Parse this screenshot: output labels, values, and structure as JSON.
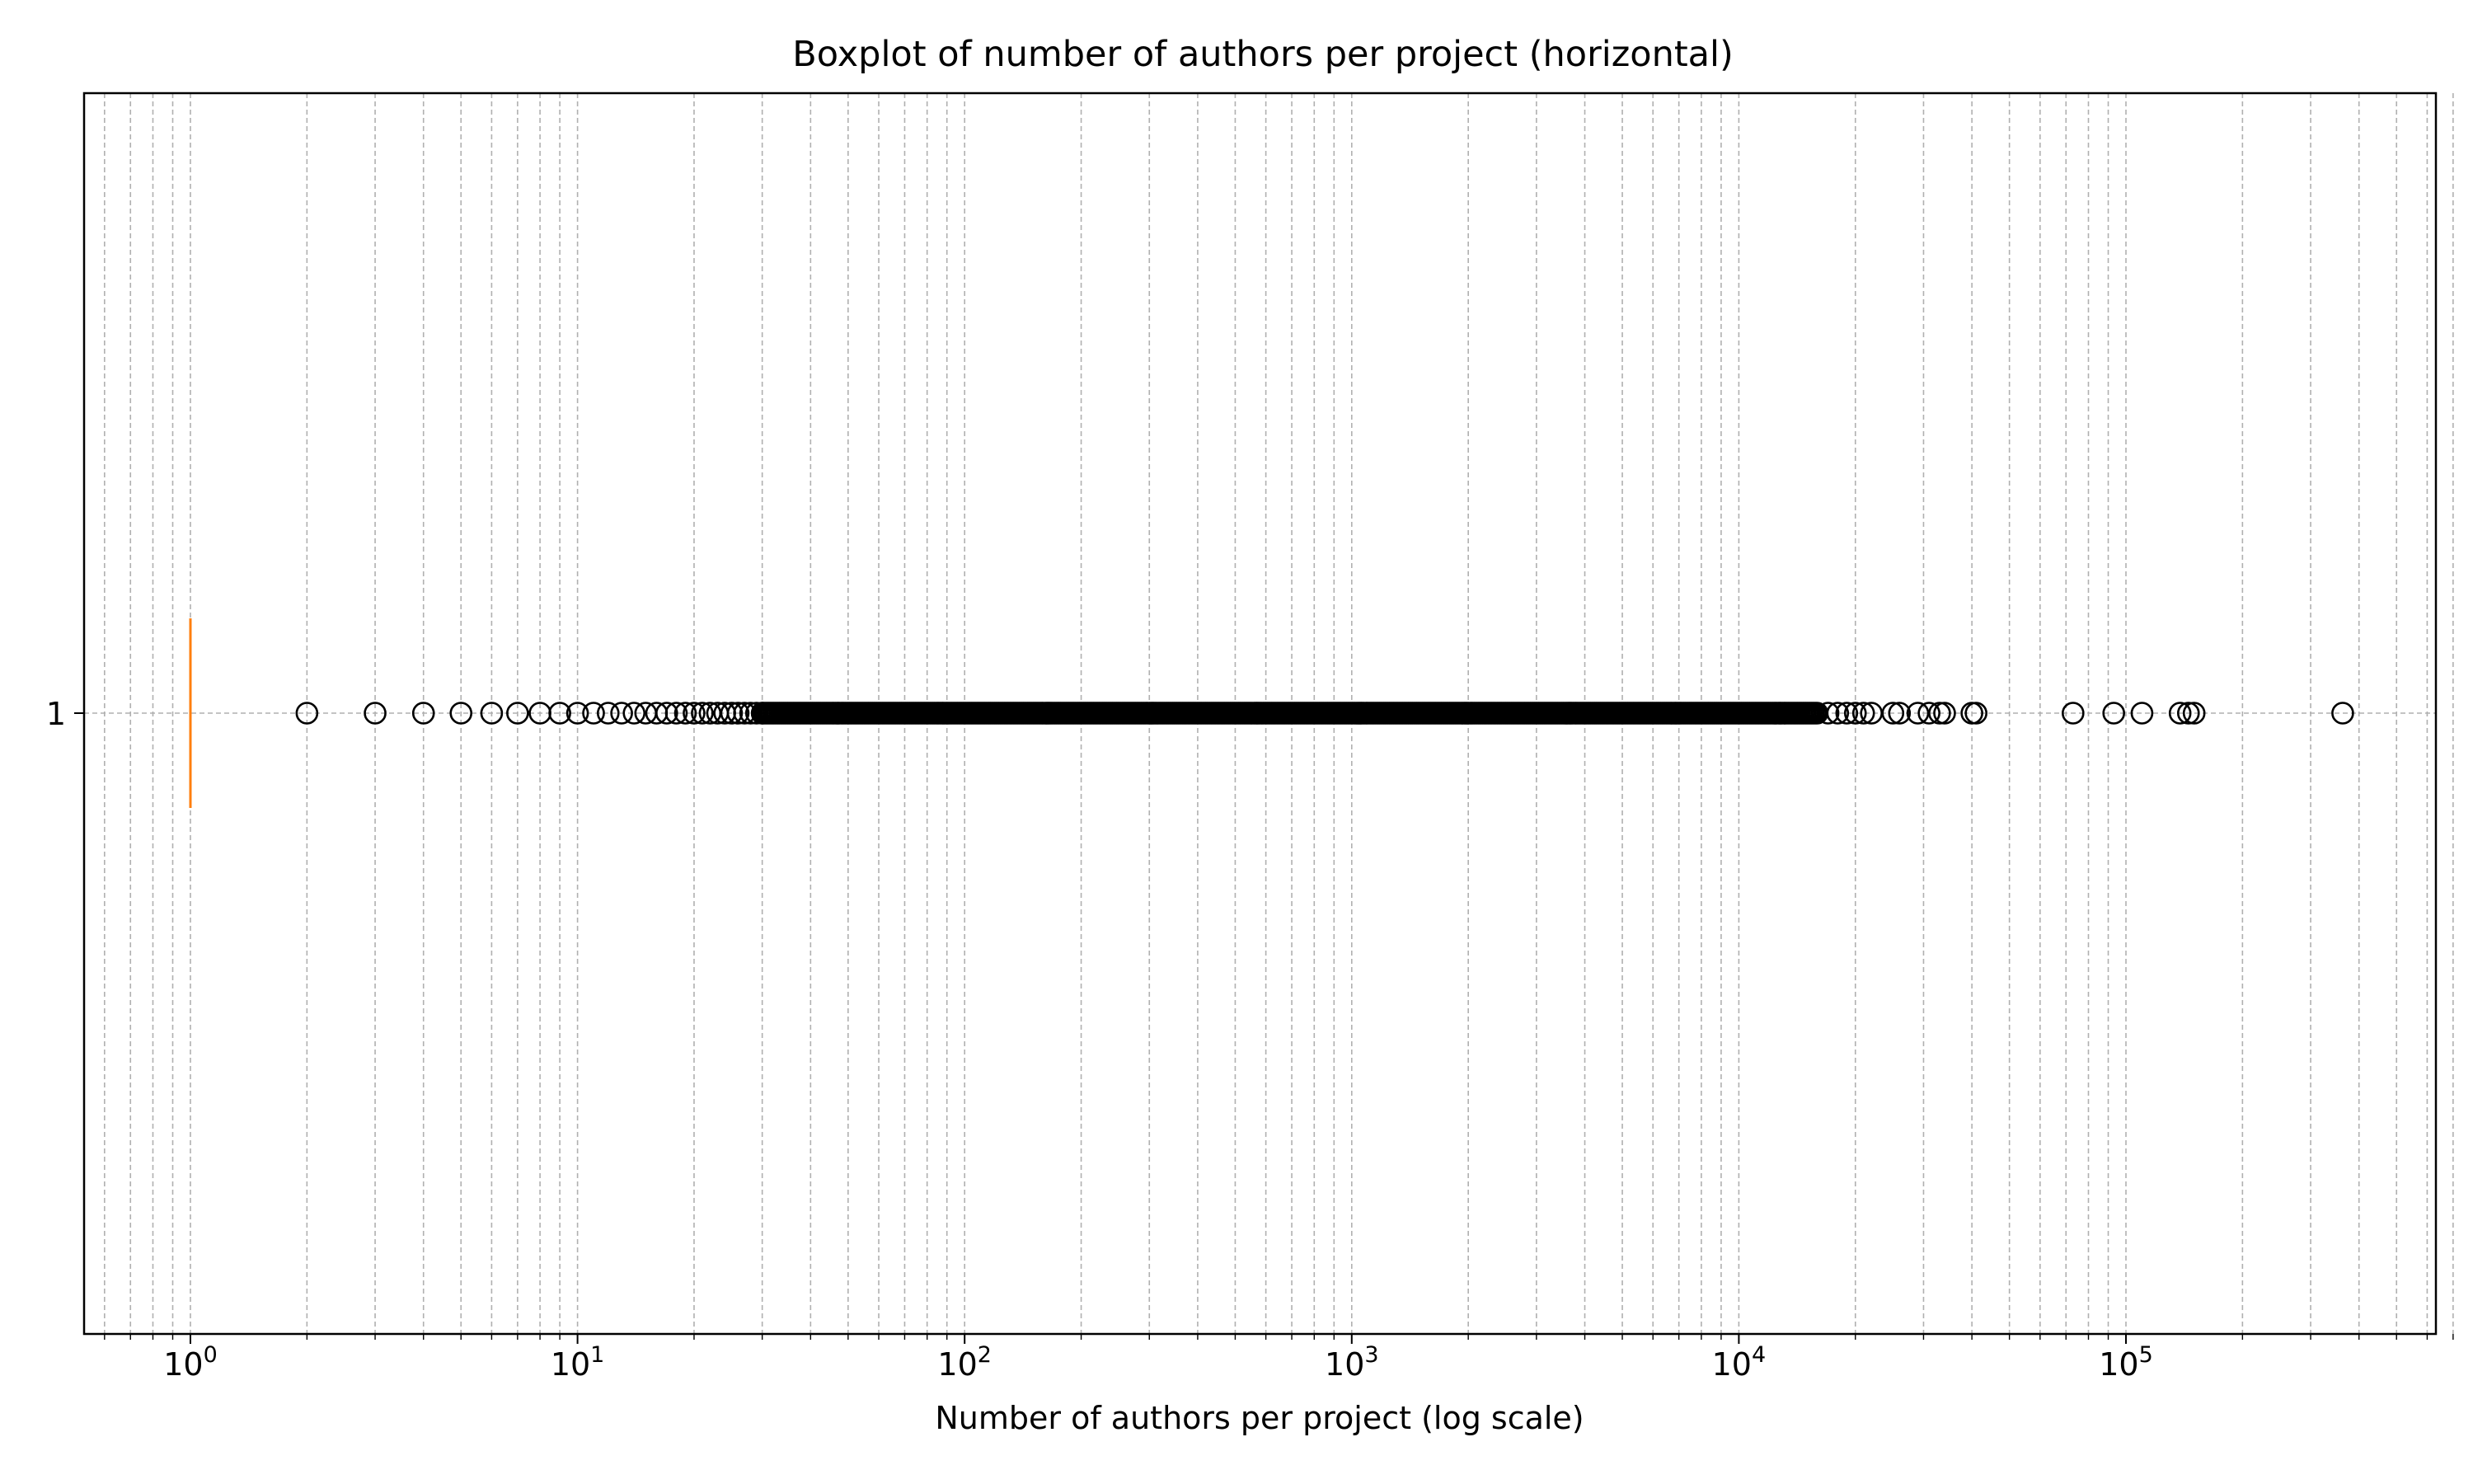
{
  "chart_data": {
    "type": "boxplot",
    "orientation": "horizontal",
    "title": "Boxplot of number of authors per project (horizontal)",
    "xlabel": "Number of authors per project (log scale)",
    "ylabel": "",
    "x_scale": "log",
    "xlim": [
      0.6,
      700000
    ],
    "x_ticks": [
      {
        "value": 1,
        "base": "10",
        "exp": "0"
      },
      {
        "value": 10,
        "base": "10",
        "exp": "1"
      },
      {
        "value": 100,
        "base": "10",
        "exp": "2"
      },
      {
        "value": 1000,
        "base": "10",
        "exp": "3"
      },
      {
        "value": 10000,
        "base": "10",
        "exp": "4"
      },
      {
        "value": 100000,
        "base": "10",
        "exp": "5"
      }
    ],
    "y_ticks": [
      "1"
    ],
    "grid": true,
    "grid_style": "dashed",
    "box": {
      "position": 1,
      "median": 1,
      "q1": 1,
      "q3": 1,
      "whisker_low": 1,
      "whisker_high": 1
    },
    "median_color": "#ff7f0e",
    "flier_color": "#000000",
    "outliers": {
      "discrete": [
        2,
        3,
        4,
        5,
        6,
        7,
        8,
        9,
        10,
        11,
        12,
        13,
        14,
        15,
        16,
        17,
        18,
        19,
        20,
        21,
        22,
        23,
        24,
        25,
        26,
        27,
        28,
        29,
        30
      ],
      "dense_range": [
        30,
        16000
      ],
      "high": [
        17000,
        18000,
        19000,
        20000,
        21000,
        22000,
        25000,
        26000,
        29000,
        31000,
        33000,
        34000,
        40000,
        41000,
        73000,
        93000,
        110000,
        138000,
        145000,
        150000,
        363000
      ]
    }
  }
}
